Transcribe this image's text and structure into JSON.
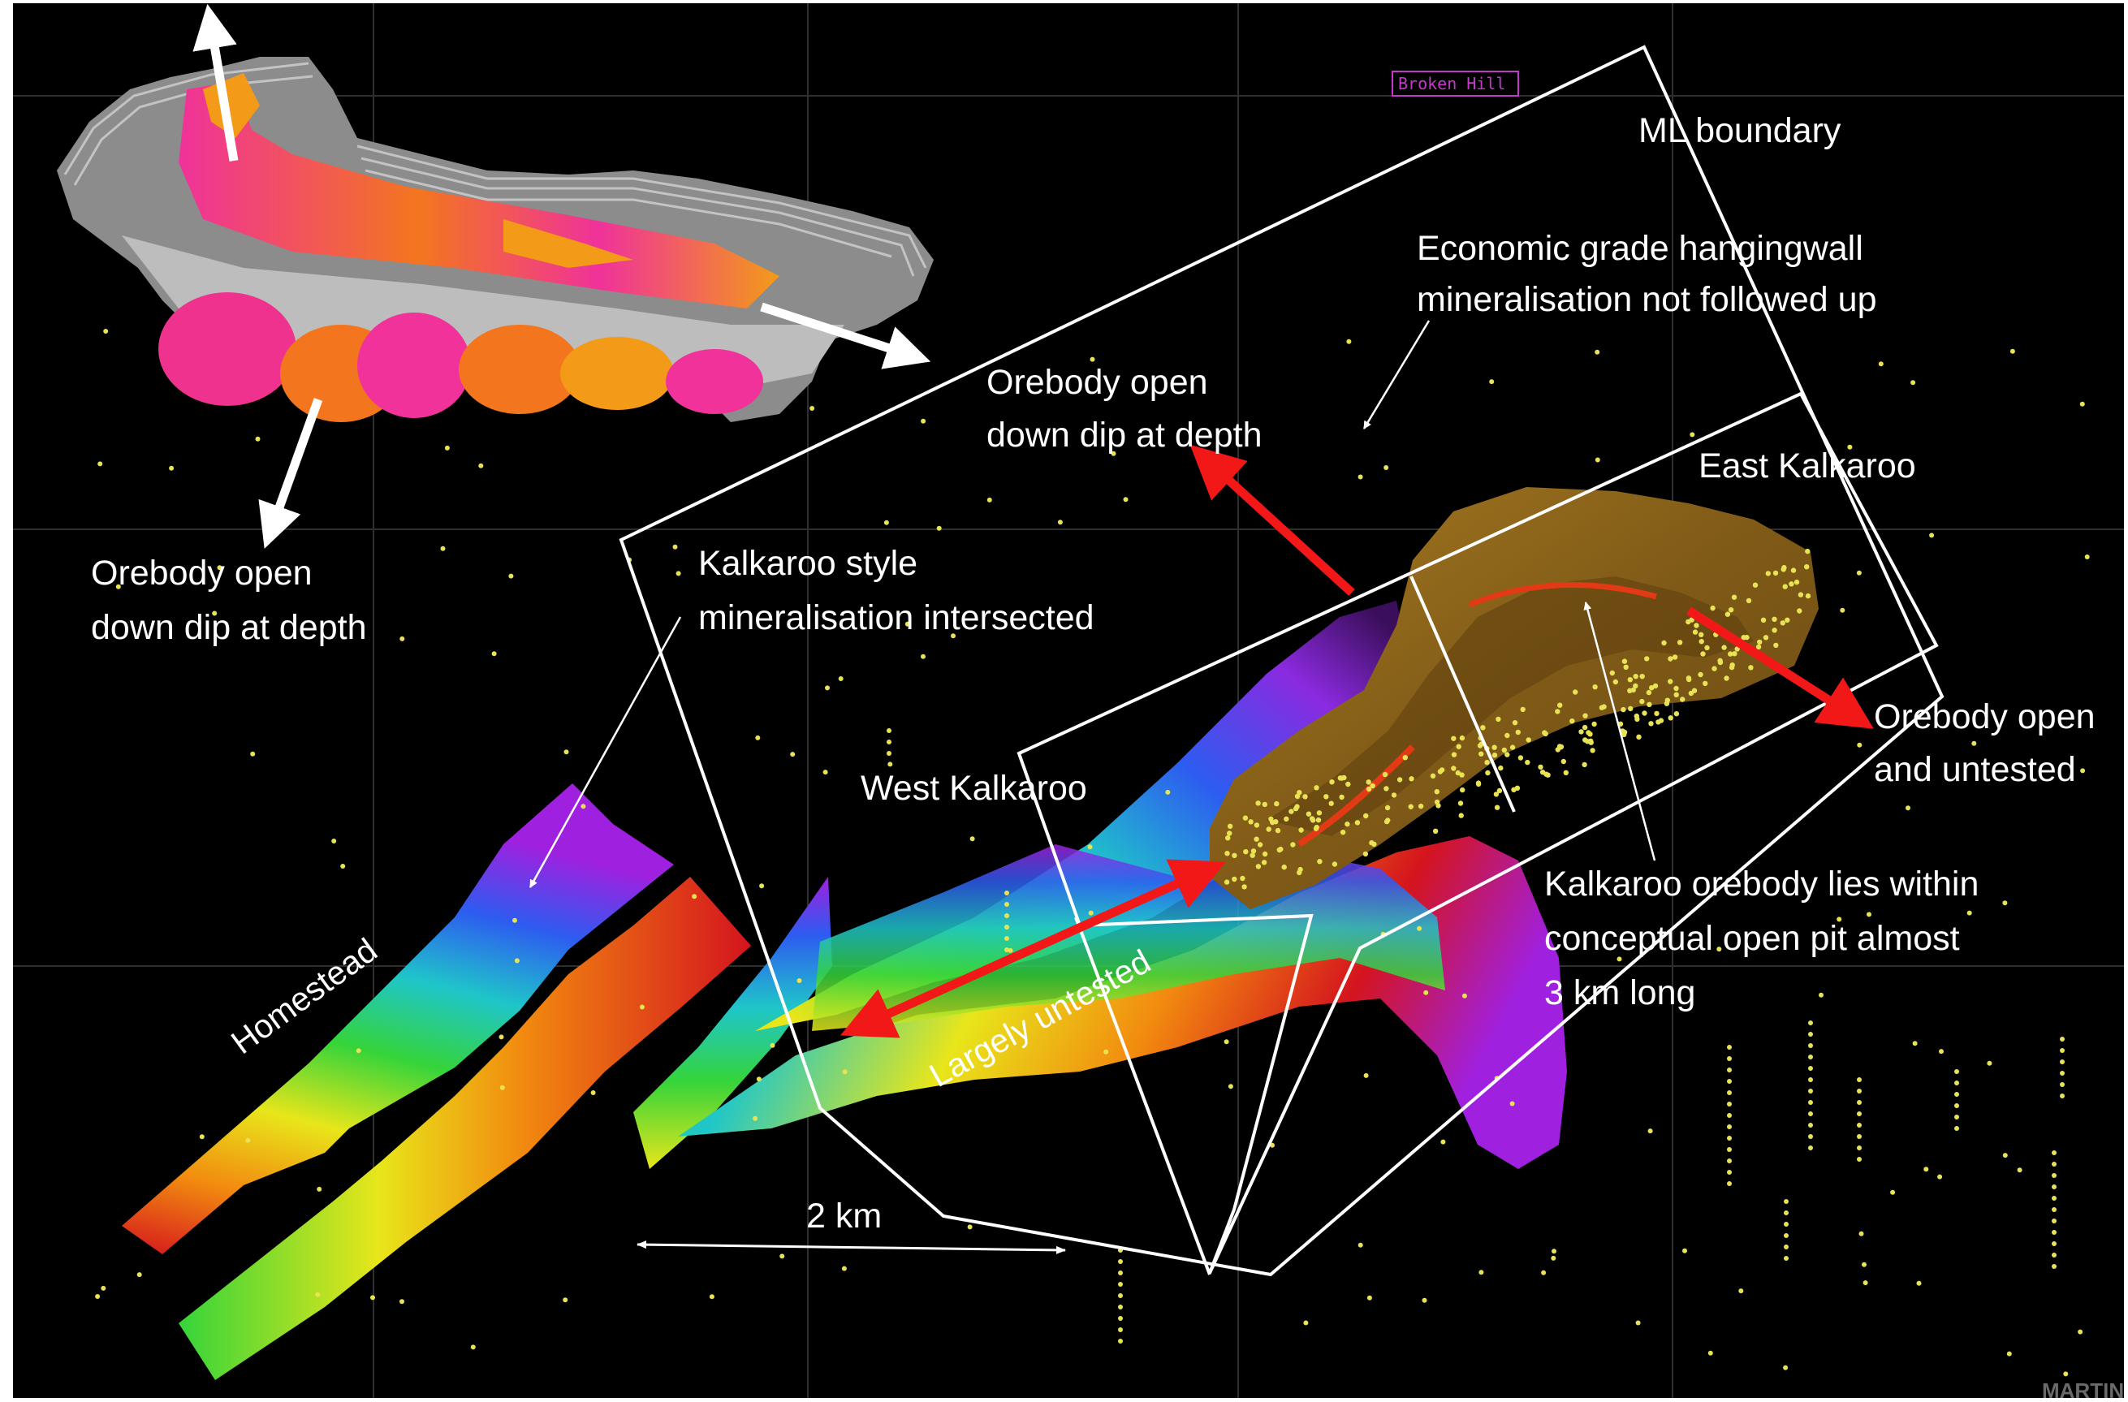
{
  "map": {
    "tag": "Broken Hill",
    "logo": "MARTIN"
  },
  "labels": {
    "ml_boundary": "ML boundary",
    "economic_line1": "Economic grade hangingwall",
    "economic_line2": "mineralisation not followed up",
    "open_dip_center_line1": "Orebody open",
    "open_dip_center_line2": "down dip at depth",
    "east_kalkaroo": "East Kalkaroo",
    "open_dip_left_line1": "Orebody open",
    "open_dip_left_line2": "down dip at depth",
    "kalkaroo_style_line1": "Kalkaroo style",
    "kalkaroo_style_line2": "mineralisation intersected",
    "open_untested_line1": "Orebody open",
    "open_untested_line2": "and untested",
    "west_kalkaroo": "West Kalkaroo",
    "orebody_lies_line1": "Kalkaroo orebody lies within",
    "orebody_lies_line2": "conceptual open pit almost",
    "orebody_lies_line3": "3 km long",
    "homestead": "Homestead",
    "largely_untested": "Largely untested",
    "scale": "2 km"
  },
  "colors": {
    "background": "#000000",
    "grid": "#2f2f2f",
    "boundary": "#ffffff",
    "red_arrow": "#f21818",
    "white_arrow": "#ffffff",
    "drill_dot": "#e8e255",
    "pit": "#8a6318",
    "inset_pink": "#f0329a",
    "inset_orange": "#f39a18"
  }
}
